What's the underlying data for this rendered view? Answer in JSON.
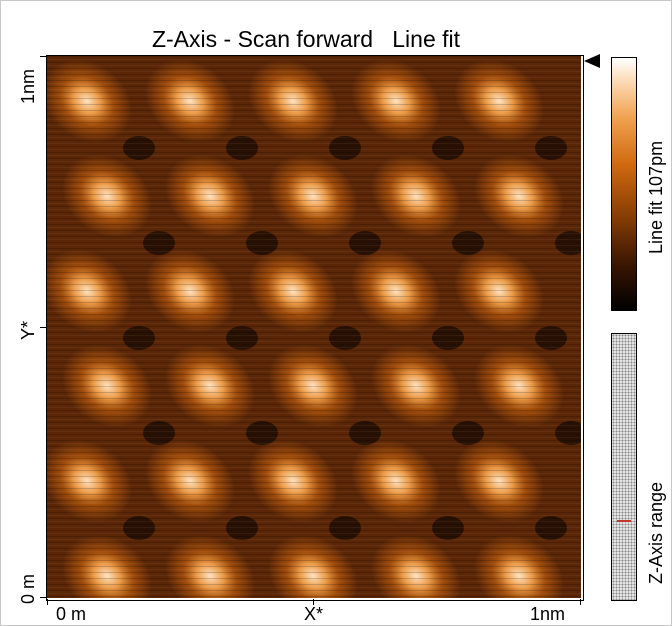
{
  "header": {
    "title": "Z-Axis - Scan forward   Line fit"
  },
  "axes": {
    "x": {
      "start_label": "0 m",
      "mid_label": "X*",
      "end_label": "1nm"
    },
    "y": {
      "start_label": "0 m",
      "mid_label": "Y*",
      "end_label": "1nm"
    }
  },
  "colorbar": {
    "label": "Line fit 107pm"
  },
  "range_bar": {
    "label": "Z-Axis range"
  },
  "colors": {
    "dark": "#000000",
    "mid": "#c0600a",
    "light": "#ffffff",
    "range_marker": "#c0392b"
  }
}
